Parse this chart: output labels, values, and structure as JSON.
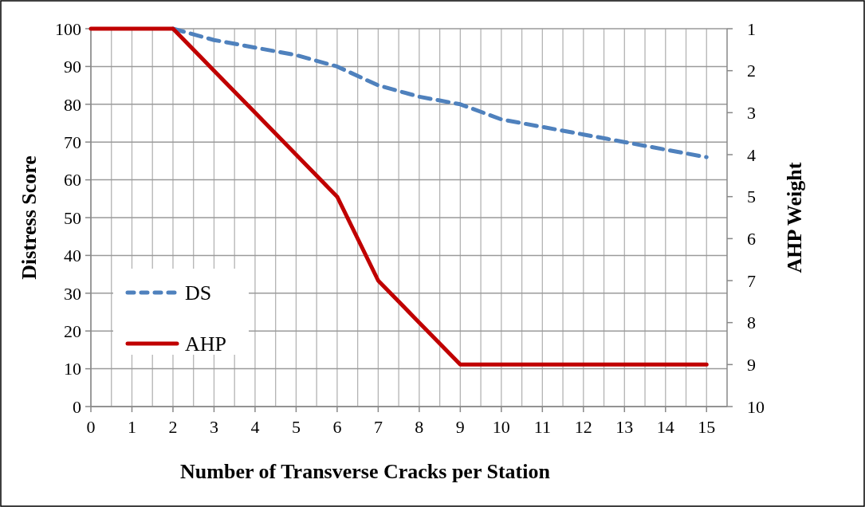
{
  "chart_data": {
    "type": "line",
    "xlabel": "Number of Transverse Cracks per Station",
    "ylabel": "Distress Score",
    "y2label": "AHP Weight",
    "x": [
      0,
      1,
      2,
      3,
      4,
      5,
      6,
      7,
      8,
      9,
      10,
      11,
      12,
      13,
      14,
      15
    ],
    "series": [
      {
        "name": "DS",
        "color": "#4f81bd",
        "line_style": "dashed",
        "values": [
          null,
          null,
          100,
          97,
          95,
          93,
          90,
          85,
          82,
          80,
          76,
          74,
          72,
          70,
          68,
          66
        ]
      },
      {
        "name": "AHP",
        "color": "#c00000",
        "line_style": "solid",
        "axis": "y2",
        "values": [
          1,
          1,
          1,
          2,
          3,
          4,
          5,
          7,
          8,
          9,
          9,
          9,
          9,
          9,
          9,
          9
        ]
      }
    ],
    "xlim": [
      0,
      15.5
    ],
    "xticks": [
      0,
      {
        "value": 0.5,
        "label": null
      },
      1,
      {
        "value": 1.5,
        "label": null
      },
      2,
      {
        "value": 2.5,
        "label": null
      },
      3,
      {
        "value": 3.5,
        "label": null
      },
      4,
      {
        "value": 4.5,
        "label": null
      },
      5,
      {
        "value": 5.5,
        "label": null
      },
      6,
      {
        "value": 6.5,
        "label": null
      },
      7,
      {
        "value": 7.5,
        "label": null
      },
      8,
      {
        "value": 8.5,
        "label": null
      },
      9,
      {
        "value": 9.5,
        "label": null
      },
      10,
      {
        "value": 10.5,
        "label": null
      },
      11,
      {
        "value": 11.5,
        "label": null
      },
      12,
      {
        "value": 12.5,
        "label": null
      },
      13,
      {
        "value": 13.5,
        "label": null
      },
      14,
      {
        "value": 14.5,
        "label": null
      },
      15
    ],
    "ylim": [
      0,
      100
    ],
    "yticks": [
      0,
      10,
      20,
      30,
      40,
      50,
      60,
      70,
      80,
      90,
      100
    ],
    "y2lim": [
      10,
      1
    ],
    "y2ticks": [
      1,
      2,
      3,
      4,
      5,
      6,
      7,
      8,
      9,
      10
    ],
    "grid": true,
    "legend": "left",
    "marker": "none"
  }
}
